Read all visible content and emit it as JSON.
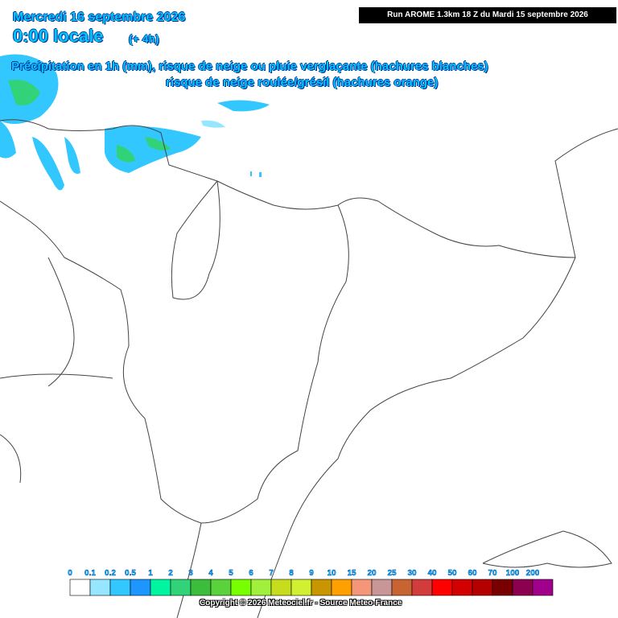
{
  "header": {
    "date": "Mercredi 16 septembre 2026",
    "time": "0:00 locale",
    "offset": "(+ 4h)",
    "run": "Run AROME 1.3km 18 Z du Mardi 15 septembre 2026",
    "title_line1": "Précipitation en 1h (mm), risque de neige ou pluie verglaçante (hachures blanches)",
    "title_line2": "risque de neige roulée/grésil (hachures orange)"
  },
  "legend": {
    "labels": [
      "0",
      "0.1",
      "0.2",
      "0.5",
      "1",
      "2",
      "3",
      "4",
      "5",
      "6",
      "7",
      "8",
      "9",
      "10",
      "15",
      "20",
      "25",
      "30",
      "40",
      "50",
      "60",
      "70",
      "100",
      "200"
    ],
    "colors": [
      "#ffffff",
      "#96e6ff",
      "#32c8ff",
      "#1e96ff",
      "#00f5a0",
      "#32d278",
      "#3cbe3c",
      "#5ad23c",
      "#78ff00",
      "#a0f03c",
      "#c8dc1e",
      "#d2f032",
      "#c89600",
      "#ffa000",
      "#f59678",
      "#c89696",
      "#c86432",
      "#d23c3c",
      "#ff0000",
      "#d20000",
      "#b40000",
      "#780000",
      "#8c0050",
      "#a0008c"
    ]
  },
  "footer": {
    "copyright": "Copyright © 2026 Meteociel.fr - Source Meteo-France"
  }
}
